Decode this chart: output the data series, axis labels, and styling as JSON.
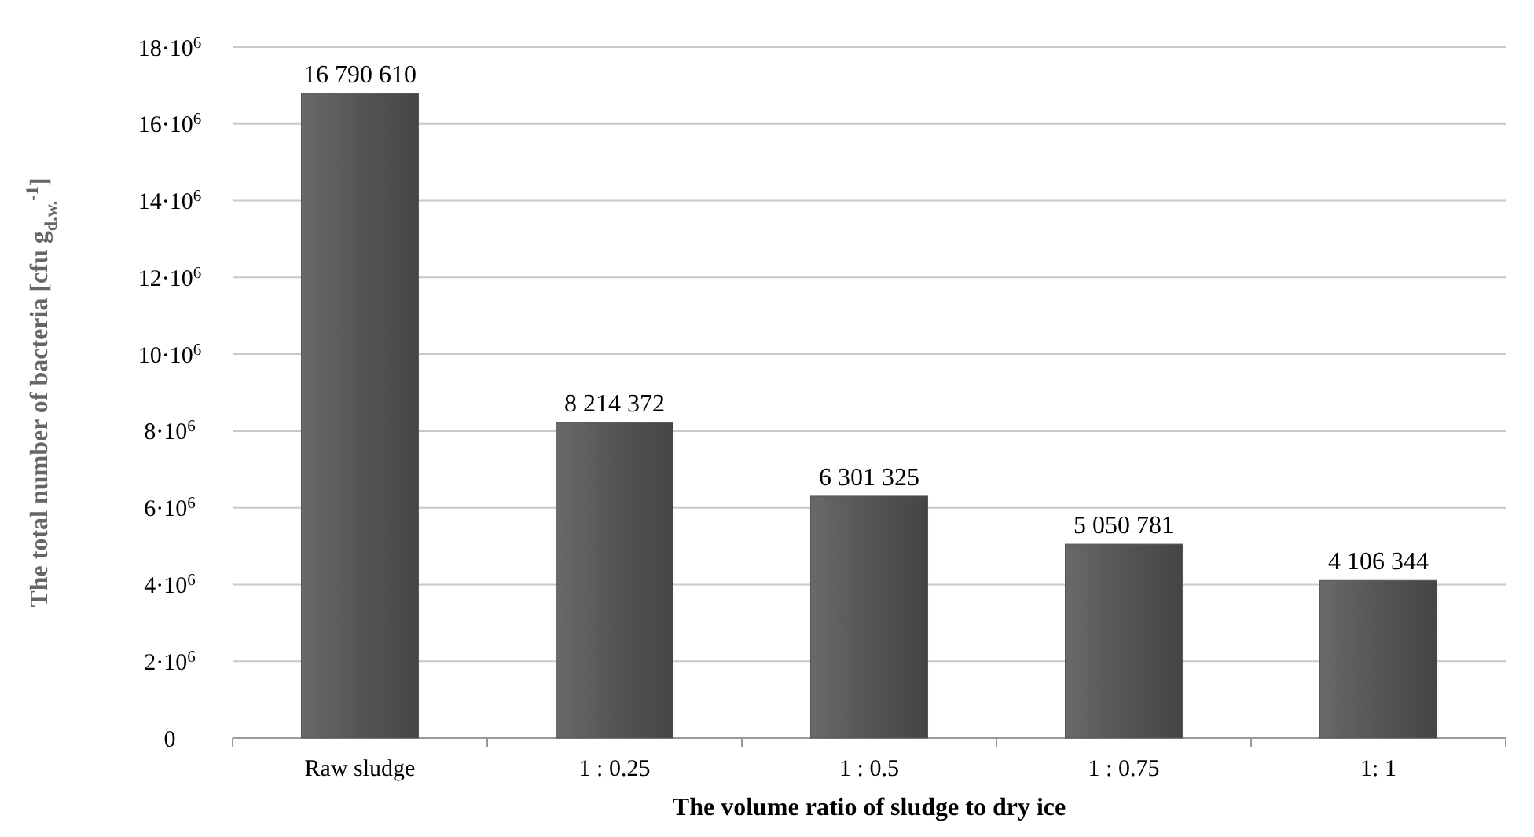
{
  "chart_data": {
    "type": "bar",
    "xlabel": "The volume ratio of sludge to dry ice",
    "ylabel": "The total number of bacteria [cfu g$_{d.w.}$$^{-1}$]",
    "categories": [
      "Raw sludge",
      "1 : 0.25",
      "1 : 0.5",
      "1 : 0.75",
      "1: 1"
    ],
    "values": [
      16790610,
      8214372,
      6301325,
      5050781,
      4106344
    ],
    "value_labels": [
      "16 790 610",
      "8 214 372",
      "6 301 325",
      "5 050 781",
      "4 106 344"
    ],
    "color": "#555555",
    "ylim": [
      0,
      18000000
    ],
    "yticks": [
      0,
      {
        "value": 2000000,
        "label": "2·10$^{6}$"
      },
      {
        "value": 4000000,
        "label": "4·10$^{6}$"
      },
      {
        "value": 6000000,
        "label": "6·10$^{6}$"
      },
      {
        "value": 8000000,
        "label": "8·10$^{6}$"
      },
      {
        "value": 10000000,
        "label": "10·10$^{6}$"
      },
      {
        "value": 12000000,
        "label": "12·10$^{6}$"
      },
      {
        "value": 14000000,
        "label": "14·10$^{6}$"
      },
      {
        "value": 16000000,
        "label": "16·10$^{6}$"
      },
      {
        "value": 18000000,
        "label": "18·10$^{6}$"
      }
    ],
    "grid": "y"
  }
}
